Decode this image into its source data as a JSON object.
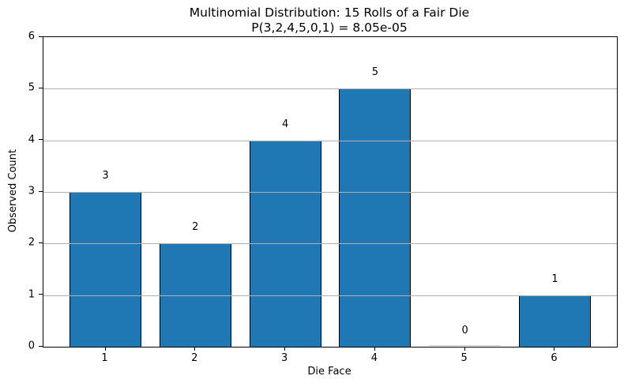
{
  "chart_data": {
    "type": "bar",
    "title": "Multinomial Distribution: 15 Rolls of a Fair Die",
    "subtitle": "P(3,2,4,5,0,1) = 8.05e-05",
    "xlabel": "Die Face",
    "ylabel": "Observed Count",
    "categories": [
      "1",
      "2",
      "3",
      "4",
      "5",
      "6"
    ],
    "x": [
      1,
      2,
      3,
      4,
      5,
      6
    ],
    "values": [
      3,
      2,
      4,
      5,
      0,
      1
    ],
    "bar_labels": [
      "3",
      "2",
      "4",
      "5",
      "0",
      "1"
    ],
    "bar_width": 0.8,
    "xlim": [
      0.31,
      6.69
    ],
    "ylim": [
      0,
      6
    ],
    "yticks": [
      0,
      1,
      2,
      3,
      4,
      5,
      6
    ],
    "grid": "y",
    "legend": "none",
    "colors": {
      "bar_fill": "#1f77b4",
      "bar_edge": "#000000",
      "zero_bar_edge": "#cccccc",
      "grid": "#b0b0b0",
      "spine": "#000000",
      "text": "#000000",
      "background": "#ffffff"
    }
  }
}
